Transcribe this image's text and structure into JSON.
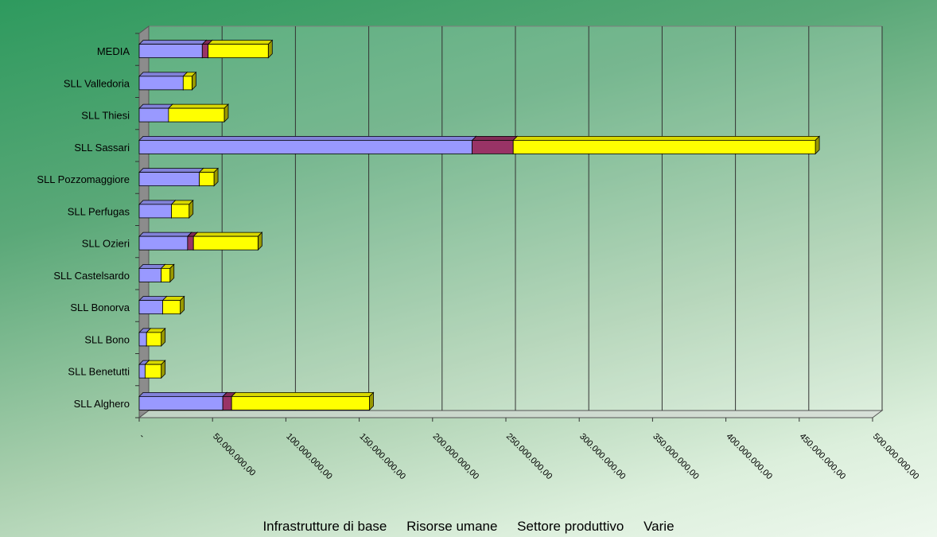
{
  "chart_data": {
    "type": "bar",
    "orientation": "horizontal",
    "stacked": true,
    "three_d": true,
    "categories": [
      "SLL Alghero",
      "SLL Benetutti",
      "SLL Bono",
      "SLL Bonorva",
      "SLL Castelsardo",
      "SLL Ozieri",
      "SLL Perfugas",
      "SLL Pozzomaggiore",
      "SLL Sassari",
      "SLL Thiesi",
      "SLL Valledoria",
      "MEDIA"
    ],
    "series": [
      {
        "name": "Infrastrutture di base",
        "color": "#9999ff",
        "values": [
          57000000,
          4000000,
          5000000,
          16000000,
          15000000,
          33000000,
          22000000,
          41000000,
          227000000,
          20000000,
          30000000,
          43000000
        ]
      },
      {
        "name": "Risorse umane",
        "color": "#993366",
        "values": [
          6000000,
          0,
          0,
          0,
          0,
          4000000,
          0,
          0,
          28000000,
          0,
          0,
          4000000
        ]
      },
      {
        "name": "Settore produttivo",
        "color": "#ffff00",
        "values": [
          94000000,
          11000000,
          10000000,
          12000000,
          6000000,
          44000000,
          12000000,
          10000000,
          206000000,
          38000000,
          6000000,
          41000000
        ]
      },
      {
        "name": "Varie",
        "color": "#ffffcc",
        "values": [
          0,
          0,
          0,
          0,
          0,
          0,
          0,
          0,
          0,
          0,
          0,
          0
        ]
      }
    ],
    "xlim": [
      0,
      500000000
    ],
    "xticks": [
      0,
      50000000,
      100000000,
      150000000,
      200000000,
      250000000,
      300000000,
      350000000,
      400000000,
      450000000,
      500000000
    ],
    "xtick_labels": [
      "-",
      "50.000.000,00",
      "100.000.000,00",
      "150.000.000,00",
      "200.000.000,00",
      "250.000.000,00",
      "300.000.000,00",
      "350.000.000,00",
      "400.000.000,00",
      "450.000.000,00",
      "500.000.000,00"
    ],
    "grid": true,
    "legend_position": "bottom"
  }
}
